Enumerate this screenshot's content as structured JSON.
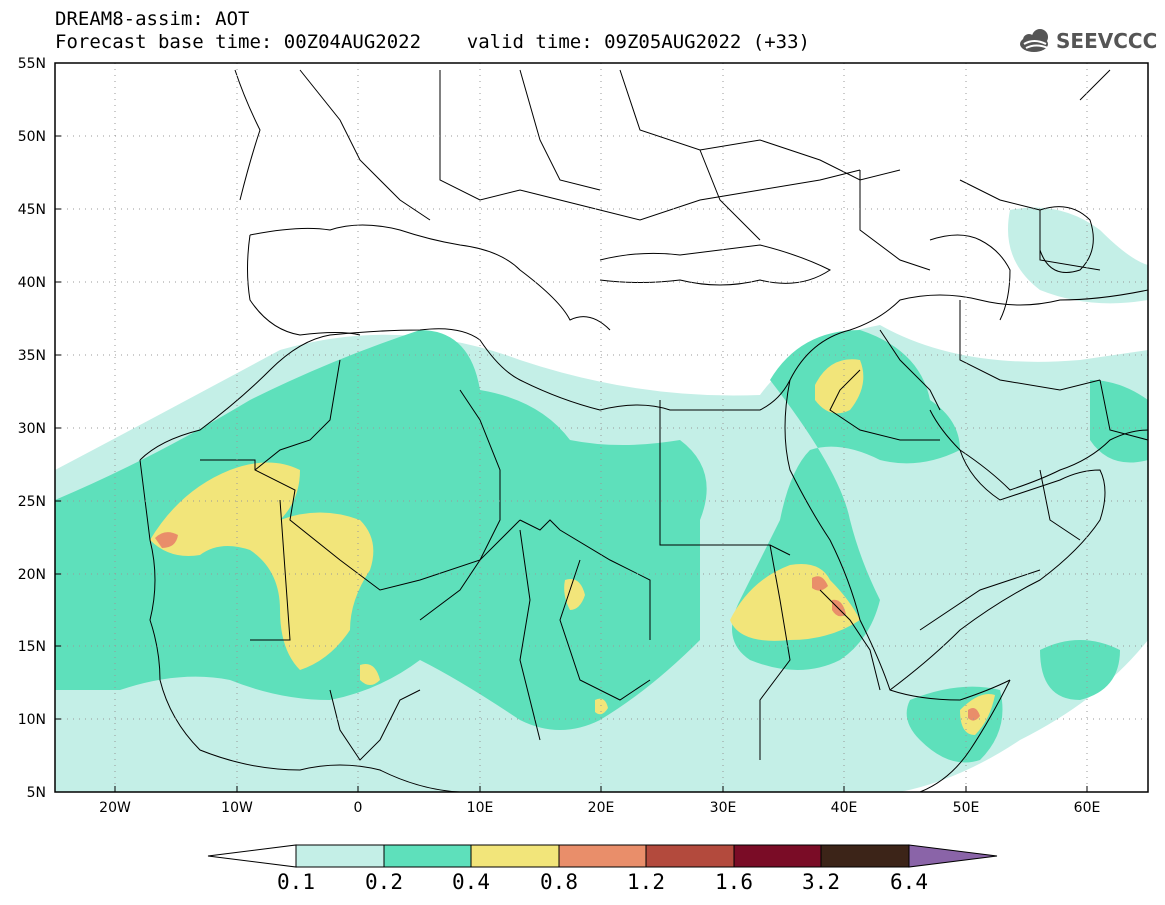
{
  "header": {
    "line1": "DREAM8-assim: AOT",
    "line2": "Forecast base time: 00Z04AUG2022    valid time: 09Z05AUG2022 (+33)",
    "logo_text": "SEEVCCC",
    "logo_icon": "cloud-icon"
  },
  "map": {
    "lat_labels": [
      "55N",
      "50N",
      "45N",
      "40N",
      "35N",
      "30N",
      "25N",
      "20N",
      "15N",
      "10N",
      "5N"
    ],
    "lon_labels": [
      "20W",
      "10W",
      "0",
      "10E",
      "20E",
      "30E",
      "40E",
      "50E",
      "60E"
    ]
  },
  "colorbar": {
    "labels": [
      "0.1",
      "0.2",
      "0.4",
      "0.8",
      "1.2",
      "1.6",
      "3.2",
      "6.4"
    ],
    "colors": [
      "#ffffff",
      "#c4efe7",
      "#5ee0bb",
      "#f2e57a",
      "#e98e6a",
      "#b34a3d",
      "#7a0c26",
      "#3c2418",
      "#8a64a8"
    ]
  },
  "colors": {
    "c1": "#c4efe7",
    "c2": "#5ee0bb",
    "c3": "#f2e57a",
    "c4": "#e98e6a",
    "c5": "#c85a4a",
    "border": "#000000"
  }
}
